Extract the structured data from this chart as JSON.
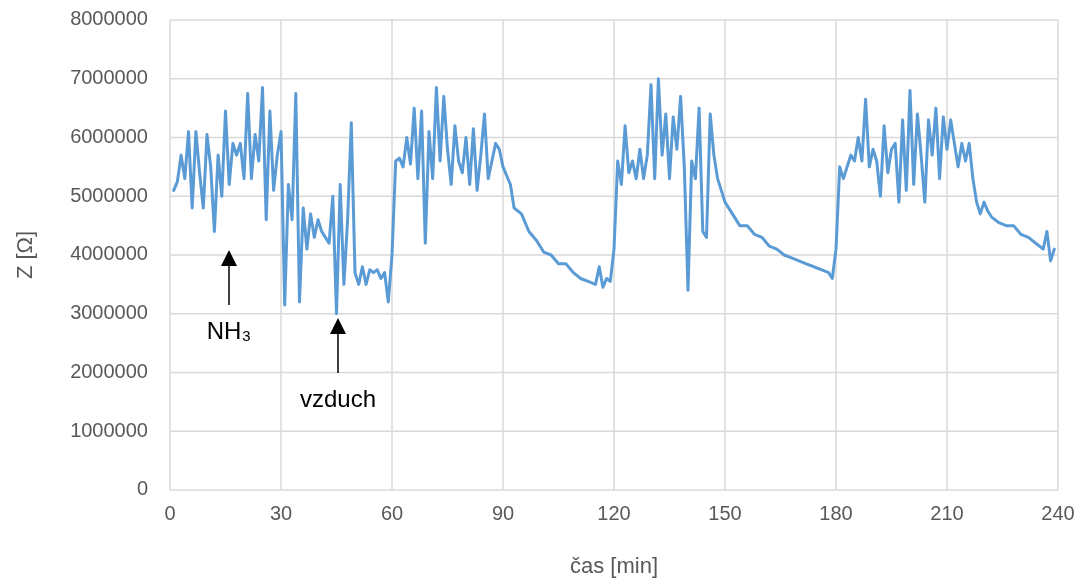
{
  "chart_data": {
    "type": "line",
    "xlabel": "čas [min]",
    "ylabel": "Z [Ω]",
    "xlim": [
      0,
      240
    ],
    "xticks": [
      0,
      30,
      60,
      90,
      120,
      150,
      180,
      210,
      240
    ],
    "ylim": [
      0,
      8000000
    ],
    "yticks": [
      0,
      1000000,
      2000000,
      3000000,
      4000000,
      5000000,
      6000000,
      7000000,
      8000000
    ],
    "grid": true,
    "marker": "none",
    "line_style": "solid",
    "annotations": [
      "NH₃",
      "vzduch"
    ],
    "series": [
      {
        "color": "#5b9bd5",
        "x": [
          1,
          2,
          3,
          4,
          5,
          6,
          7,
          8,
          9,
          10,
          11,
          12,
          13,
          14,
          15,
          16,
          17,
          18,
          19,
          20,
          21,
          22,
          23,
          24,
          25,
          26,
          27,
          28,
          29,
          30,
          31,
          32,
          33,
          34,
          35,
          36,
          37,
          38,
          39,
          40,
          41,
          42,
          43,
          44,
          45,
          46,
          47,
          48,
          49,
          50,
          51,
          52,
          53,
          54,
          55,
          56,
          57,
          58,
          59,
          60,
          61,
          62,
          63,
          64,
          65,
          66,
          67,
          68,
          69,
          70,
          71,
          72,
          73,
          74,
          75,
          76,
          77,
          78,
          79,
          80,
          81,
          82,
          83,
          84,
          85,
          86,
          87,
          88,
          89,
          90,
          92,
          93,
          95,
          97,
          99,
          101,
          103,
          105,
          107,
          109,
          111,
          113,
          115,
          116,
          117,
          118,
          119,
          120,
          121,
          122,
          123,
          124,
          125,
          126,
          127,
          128,
          129,
          130,
          131,
          132,
          133,
          134,
          135,
          136,
          137,
          138,
          139,
          140,
          141,
          142,
          143,
          144,
          145,
          146,
          147,
          148,
          150,
          152,
          154,
          156,
          158,
          160,
          162,
          164,
          166,
          168,
          170,
          172,
          174,
          176,
          178,
          179,
          180,
          181,
          182,
          183,
          184,
          185,
          186,
          187,
          188,
          189,
          190,
          191,
          192,
          193,
          194,
          195,
          196,
          197,
          198,
          199,
          200,
          201,
          202,
          203,
          204,
          205,
          206,
          207,
          208,
          209,
          210,
          211,
          212,
          213,
          214,
          215,
          216,
          217,
          218,
          219,
          220,
          221,
          222,
          224,
          226,
          228,
          230,
          232,
          234,
          236,
          237,
          238,
          239
        ],
        "values": [
          5100000,
          5250000,
          5700000,
          5300000,
          6100000,
          4800000,
          6100000,
          5400000,
          4800000,
          6050000,
          5500000,
          4400000,
          5700000,
          5000000,
          6450000,
          5200000,
          5900000,
          5700000,
          5900000,
          5300000,
          6750000,
          5300000,
          6050000,
          5600000,
          6850000,
          4600000,
          6450000,
          5100000,
          5700000,
          6100000,
          3150000,
          5200000,
          4600000,
          6750000,
          3200000,
          4800000,
          4100000,
          4700000,
          4300000,
          4600000,
          4400000,
          4300000,
          4200000,
          5000000,
          3000000,
          5200000,
          3500000,
          4600000,
          6250000,
          3700000,
          3500000,
          3800000,
          3500000,
          3750000,
          3700000,
          3750000,
          3600000,
          3700000,
          3200000,
          4000000,
          5600000,
          5650000,
          5500000,
          6000000,
          5550000,
          6500000,
          5300000,
          6450000,
          4200000,
          6100000,
          5300000,
          6850000,
          5600000,
          6700000,
          5800000,
          5200000,
          6200000,
          5600000,
          5400000,
          6000000,
          5200000,
          6150000,
          5100000,
          5700000,
          6400000,
          5300000,
          5600000,
          5900000,
          5800000,
          5500000,
          5200000,
          4800000,
          4700000,
          4400000,
          4250000,
          4050000,
          4000000,
          3850000,
          3850000,
          3700000,
          3600000,
          3550000,
          3500000,
          3800000,
          3450000,
          3600000,
          3550000,
          4100000,
          5600000,
          5200000,
          6200000,
          5400000,
          5600000,
          5300000,
          5800000,
          5300000,
          5700000,
          6900000,
          5300000,
          7000000,
          5700000,
          6400000,
          5300000,
          6350000,
          5800000,
          6700000,
          5500000,
          3400000,
          5600000,
          5300000,
          6500000,
          4400000,
          4300000,
          6400000,
          5700000,
          5300000,
          4900000,
          4700000,
          4500000,
          4500000,
          4350000,
          4300000,
          4150000,
          4100000,
          4000000,
          3950000,
          3900000,
          3850000,
          3800000,
          3750000,
          3700000,
          3600000,
          4100000,
          5500000,
          5300000,
          5500000,
          5700000,
          5600000,
          6000000,
          5600000,
          6650000,
          5500000,
          5800000,
          5600000,
          5000000,
          6200000,
          5400000,
          5800000,
          5900000,
          4900000,
          6300000,
          5100000,
          6800000,
          5200000,
          6400000,
          5700000,
          4900000,
          6300000,
          5700000,
          6500000,
          5300000,
          6350000,
          5800000,
          6300000,
          5900000,
          5500000,
          5900000,
          5600000,
          5900000,
          5300000,
          4900000,
          4700000,
          4900000,
          4750000,
          4650000,
          4550000,
          4500000,
          4500000,
          4350000,
          4300000,
          4200000,
          4100000,
          4400000,
          3900000,
          4100000
        ]
      }
    ]
  }
}
